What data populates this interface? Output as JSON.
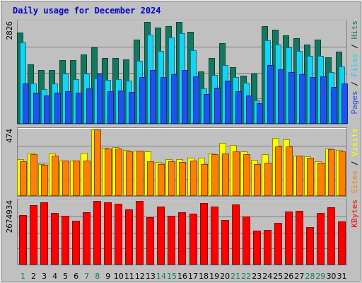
{
  "chart_data": {
    "title": "Daily usage for December 2024",
    "type": "bar",
    "colors": {
      "background": "#c0c0c0",
      "title": "#0000cc",
      "hits": "#127960",
      "files": "#12d4f5",
      "pages": "#1f52ef",
      "visits": "#ffff00",
      "sites": "#ff8000",
      "kbytes": "#ff0000",
      "grid": "#808080",
      "weekday_label": "#000000",
      "weekend_label": "#127960"
    },
    "days": [
      "1",
      "2",
      "3",
      "4",
      "5",
      "6",
      "7",
      "8",
      "9",
      "10",
      "11",
      "12",
      "13",
      "14",
      "15",
      "16",
      "17",
      "18",
      "19",
      "20",
      "21",
      "22",
      "23",
      "24",
      "25",
      "26",
      "27",
      "28",
      "29",
      "30",
      "31"
    ],
    "weekend_days": [
      1,
      7,
      8,
      14,
      15,
      21,
      22,
      28,
      29
    ],
    "panels": [
      {
        "id": "top",
        "ymax_label": "2826",
        "ymax": 2826,
        "legend": [
          {
            "text": "Pages",
            "color": "#1f52ef"
          },
          {
            "text": " / ",
            "color": "#000000"
          },
          {
            "text": "Files",
            "color": "#12d4f5"
          },
          {
            "text": " / ",
            "color": "#000000"
          },
          {
            "text": "Hits",
            "color": "#127960"
          }
        ],
        "series": [
          {
            "name": "Hits",
            "color": "#127960",
            "values": [
              2526,
              1640,
              1500,
              1500,
              1760,
              1760,
              1925,
              2115,
              1820,
              1820,
              1780,
              2330,
              2826,
              2660,
              2700,
              2826,
              2550,
              1450,
              1830,
              2240,
              1570,
              1330,
              1400,
              2705,
              2605,
              2450,
              2375,
              2200,
              2326,
              1840,
              2000
            ]
          },
          {
            "name": "Files",
            "color": "#12d4f5",
            "values": [
              2265,
              1120,
              965,
              1120,
              1400,
              1230,
              1400,
              1250,
              1220,
              1230,
              1200,
              1750,
              2475,
              2020,
              2390,
              2510,
              2040,
              980,
              1360,
              1620,
              1290,
              1140,
              650,
              2315,
              2200,
              2126,
              2020,
              1880,
              1880,
              1440,
              1580
            ]
          },
          {
            "name": "Pages",
            "color": "#1f52ef",
            "values": [
              1120,
              860,
              780,
              870,
              900,
              870,
              980,
              1400,
              900,
              920,
              880,
              1300,
              1500,
              1300,
              1370,
              1500,
              1320,
              820,
              1000,
              1200,
              900,
              780,
              560,
              1620,
              1520,
              1440,
              1380,
              1300,
              1320,
              1020,
              1120
            ]
          }
        ]
      },
      {
        "id": "middle",
        "ymax_label": "474",
        "ymax": 474,
        "legend": [
          {
            "text": "Sites",
            "color": "#ff8000"
          },
          {
            "text": " / ",
            "color": "#000000"
          },
          {
            "text": "Visits",
            "color": "#ffff00"
          }
        ],
        "series": [
          {
            "name": "Visits",
            "color": "#ffff00",
            "values": [
              263,
              308,
              229,
              302,
              254,
              254,
              308,
              474,
              345,
              349,
              330,
              325,
              317,
              240,
              263,
              261,
              270,
              270,
              303,
              380,
              363,
              317,
              258,
              300,
              414,
              402,
              285,
              283,
              247,
              340,
              330
            ]
          },
          {
            "name": "Sites",
            "color": "#ff8000",
            "values": [
              247,
              295,
              221,
              288,
              254,
              254,
              252,
              474,
              340,
              339,
              320,
              321,
              247,
              225,
              245,
              244,
              250,
              228,
              297,
              305,
              317,
              300,
              228,
              238,
              355,
              355,
              285,
              270,
              238,
              333,
              318
            ]
          }
        ]
      },
      {
        "id": "bottom",
        "ymax_label": "2674934",
        "ymax": 2674934,
        "legend": [
          {
            "text": "KBytes",
            "color": "#ff0000"
          }
        ],
        "series": [
          {
            "name": "KBytes",
            "color": "#ff0000",
            "values": [
              2080000,
              2490000,
              2620000,
              2170000,
              2050000,
              1830000,
              2200000,
              2674934,
              2620000,
              2560000,
              2330000,
              2674934,
              2000000,
              2440000,
              2050000,
              2200000,
              2150000,
              2580000,
              2440000,
              1880000,
              2520000,
              2030000,
              1430000,
              1470000,
              1760000,
              2220000,
              2260000,
              1590000,
              2180000,
              2400000,
              1800000
            ]
          }
        ]
      }
    ]
  }
}
